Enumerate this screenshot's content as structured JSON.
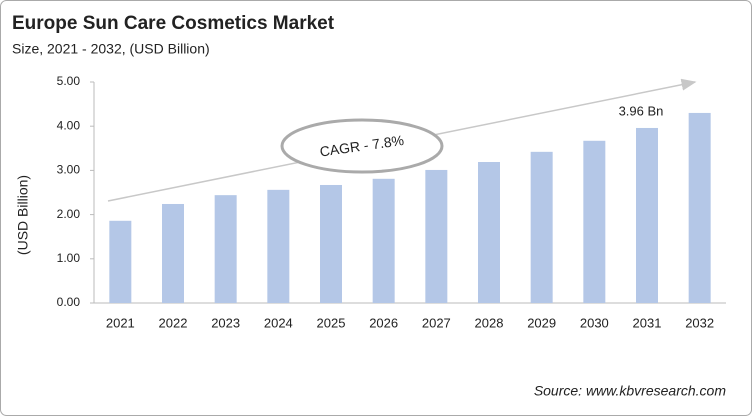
{
  "chart_data": {
    "type": "bar",
    "title": "Europe Sun Care Cosmetics Market",
    "subtitle": "Size, 2021 - 2032, (USD Billion)",
    "y_label": "(USD Billion)",
    "source": "Source: www.kbvresearch.com",
    "annotation": "CAGR - 7.8%",
    "categories": [
      "2021",
      "2022",
      "2023",
      "2024",
      "2025",
      "2026",
      "2027",
      "2028",
      "2029",
      "2030",
      "2031",
      "2032"
    ],
    "values": [
      1.86,
      2.24,
      2.44,
      2.56,
      2.67,
      2.81,
      3.01,
      3.19,
      3.42,
      3.67,
      3.96,
      4.3
    ],
    "value_labels": [
      null,
      null,
      null,
      null,
      null,
      null,
      null,
      null,
      null,
      null,
      "3.96 Bn",
      null
    ],
    "color": "#b4c7e7",
    "ylim": [
      0,
      5
    ],
    "yticks": [
      {
        "value": 0,
        "label": "0.00"
      },
      {
        "value": 1,
        "label": "1.00"
      },
      {
        "value": 2,
        "label": "2.00"
      },
      {
        "value": 3,
        "label": "3.00"
      },
      {
        "value": 4,
        "label": "4.00"
      },
      {
        "value": 5,
        "label": "5.00"
      }
    ],
    "grid": false
  }
}
